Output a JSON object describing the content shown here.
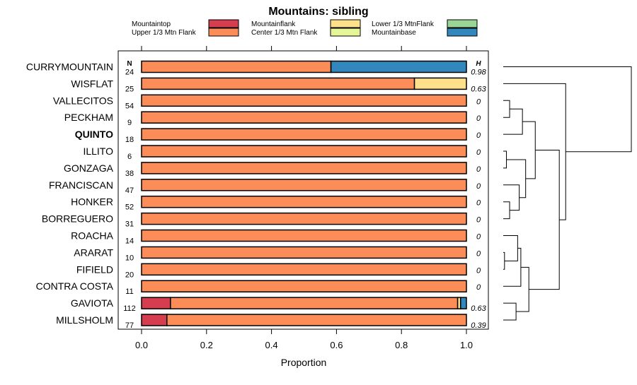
{
  "chart_data": {
    "type": "bar",
    "orientation": "horizontal",
    "stacked": true,
    "title": "Mountains: sibling",
    "xlabel": "Proportion",
    "xlim": [
      0,
      1
    ],
    "xticks": [
      "0.0",
      "0.2",
      "0.4",
      "0.6",
      "0.8",
      "1.0"
    ],
    "n_header": "N",
    "h_header": "H",
    "legend": [
      {
        "name": "Mountaintop",
        "color": "#d53e4f"
      },
      {
        "name": "Upper 1/3 Mtn Flank",
        "color": "#fc8d59"
      },
      {
        "name": "Mountainflank",
        "color": "#fee08b"
      },
      {
        "name": "Center 1/3 Mtn Flank",
        "color": "#e6f598"
      },
      {
        "name": "Lower 1/3 MtnFlank",
        "color": "#99d594"
      },
      {
        "name": "Mountainbase",
        "color": "#3288bd"
      }
    ],
    "categories": [
      "CURRYMOUNTAIN",
      "WISFLAT",
      "VALLECITOS",
      "PECKHAM",
      "QUINTO",
      "ILLITO",
      "GONZAGA",
      "FRANCISCAN",
      "HONKER",
      "BORREGUERO",
      "ROACHA",
      "ARARAT",
      "FIFIELD",
      "CONTRA COSTA",
      "GAVIOTA",
      "MILLSHOLM"
    ],
    "highlighted": "QUINTO",
    "n": [
      "24",
      "25",
      "54",
      "9",
      "18",
      "6",
      "38",
      "47",
      "52",
      "31",
      "14",
      "10",
      "20",
      "11",
      "112",
      "77"
    ],
    "h": [
      "0.98",
      "0.63",
      "0",
      "0",
      "0",
      "0",
      "0",
      "0",
      "0",
      "0",
      "0",
      "0",
      "0",
      "0",
      "0.63",
      "0.39"
    ],
    "series": [
      {
        "name": "Mountaintop",
        "values": [
          0,
          0,
          0,
          0,
          0,
          0,
          0,
          0,
          0,
          0,
          0,
          0,
          0,
          0,
          0.089,
          0.078
        ]
      },
      {
        "name": "Upper 1/3 Mtn Flank",
        "values": [
          0.583,
          0.84,
          1,
          1,
          1,
          1,
          1,
          1,
          1,
          1,
          1,
          1,
          1,
          1,
          0.884,
          0.922
        ]
      },
      {
        "name": "Mountainflank",
        "values": [
          0,
          0.16,
          0,
          0,
          0,
          0,
          0,
          0,
          0,
          0,
          0,
          0,
          0,
          0,
          0.009,
          0
        ]
      },
      {
        "name": "Center 1/3 Mtn Flank",
        "values": [
          0,
          0,
          0,
          0,
          0,
          0,
          0,
          0,
          0,
          0,
          0,
          0,
          0,
          0,
          0,
          0
        ]
      },
      {
        "name": "Lower 1/3 MtnFlank",
        "values": [
          0,
          0,
          0,
          0,
          0,
          0,
          0,
          0,
          0,
          0,
          0,
          0,
          0,
          0,
          0,
          0
        ]
      },
      {
        "name": "Mountainbase",
        "values": [
          0.417,
          0,
          0,
          0,
          0,
          0,
          0,
          0,
          0,
          0,
          0,
          0,
          0,
          0,
          0.018,
          0
        ]
      }
    ],
    "dendrogram": {
      "description": "hierarchical clustering of the 16 rows, leaf order as categories",
      "merges": [
        {
          "a": 2,
          "b": 3,
          "height": 0.02
        },
        {
          "a": 5,
          "b": 6,
          "height": 0.01
        },
        {
          "a": 8,
          "b": 9,
          "height": 0.02
        },
        {
          "a": 11,
          "b": 12,
          "height": 0.004
        },
        {
          "a": 14,
          "b": 15,
          "height": 0.04
        },
        {
          "a": 7,
          "b": "m2",
          "height": 0.05
        },
        {
          "a": 10,
          "b": "m3",
          "height": 0.045
        },
        {
          "a": "m0",
          "b": 4,
          "height": 0.06
        },
        {
          "a": "m1",
          "b": "m5",
          "height": 0.07
        },
        {
          "a": "m6",
          "b": 13,
          "height": 0.055
        },
        {
          "a": "m9",
          "b": "m4",
          "height": 0.08
        },
        {
          "a": "m7",
          "b": "m8",
          "height": 0.1
        },
        {
          "a": "m11",
          "b": "m10",
          "height": 0.175
        },
        {
          "a": 1,
          "b": "m12",
          "height": 0.195
        },
        {
          "a": 0,
          "b": "m13",
          "height": 0.4
        }
      ]
    }
  }
}
